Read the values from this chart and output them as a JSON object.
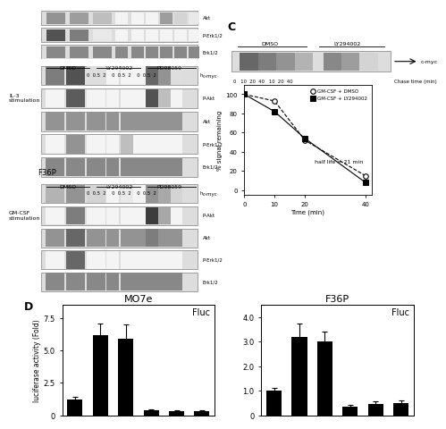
{
  "background_color": "#ffffff",
  "figure_label_D": "D",
  "figure_label_C": "C",
  "left_panel": {
    "title": "MO7e",
    "annotation": "Fluc",
    "ylabel": "luciferase activity (Fold)",
    "ylim": [
      0,
      8.5
    ],
    "yticks": [
      0,
      2.5,
      5.0,
      7.5
    ],
    "ytick_labels": [
      "0",
      "2.5",
      "5.0",
      "7.5"
    ],
    "bars": [
      1.2,
      6.2,
      5.9,
      0.35,
      0.3,
      0.3
    ],
    "errors": [
      0.2,
      0.9,
      1.1,
      0.08,
      0.06,
      0.07
    ],
    "bar_color": "#000000",
    "bar_width": 0.6
  },
  "right_panel": {
    "title": "F36P",
    "annotation": "Fluc",
    "ylim": [
      0,
      4.5
    ],
    "yticks": [
      0,
      1.0,
      2.0,
      3.0,
      4.0
    ],
    "ytick_labels": [
      "0",
      "1.0",
      "2.0",
      "3.0",
      "4.0"
    ],
    "bars": [
      1.0,
      3.2,
      3.0,
      0.35,
      0.45,
      0.5
    ],
    "errors": [
      0.12,
      0.55,
      0.4,
      0.07,
      0.12,
      0.1
    ],
    "bar_color": "#000000",
    "bar_width": 0.6
  },
  "line_graph": {
    "xlabel": "Time (min)",
    "ylabel": "% signal remaining",
    "xlim": [
      0,
      42
    ],
    "ylim": [
      -5,
      110
    ],
    "xticks": [
      0,
      10,
      20,
      40
    ],
    "yticks": [
      0,
      20,
      40,
      60,
      80,
      100
    ],
    "series1_x": [
      0,
      10,
      20,
      40
    ],
    "series1_y": [
      100,
      93,
      52,
      15
    ],
    "series2_x": [
      0,
      10,
      20,
      40
    ],
    "series2_y": [
      100,
      82,
      54,
      8
    ],
    "legend1": "GM-CSF + DMSO",
    "legend2": "GM-CSF + LY294002",
    "half_life_text": "half life = 21 min"
  },
  "wb_labels_left": [
    "c-myc",
    "P-Akt",
    "Akt",
    "P-Erk1/2",
    "Erk1/2"
  ],
  "wb_labels_right_top": [
    "Akt",
    "P-Erk1/2",
    "Erk1/2"
  ],
  "wb_labels_f36p": [
    "c-myc",
    "P-Akt",
    "Akt",
    "P-Erk1/2",
    "Erk1/2"
  ],
  "il3_label": "IL-3\nstimulation",
  "f36p_label": "F36P",
  "gmcsf_label": "GM-CSF\nstimulation",
  "dmso_label": "DMSO",
  "ly294002_label": "LY294002",
  "pd98059_label": "PD98059",
  "timepoints": "0   0.5   2     0   0.5   2     0   0.5   2",
  "h_label": "h",
  "chase_label": "Chase time (min)",
  "dmso_chase": "DMSO",
  "ly294002_chase": "LY294002",
  "chase_timepoints": "0    10   20   40    10   20   40"
}
